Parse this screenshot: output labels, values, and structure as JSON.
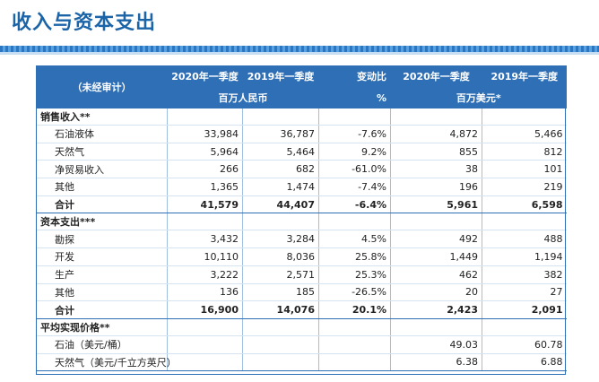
{
  "title": "收入与资本支出",
  "header": {
    "label": "（未经审计）",
    "col1": "2020年一季度",
    "col2": "2019年一季度",
    "col3": "变动比",
    "col4": "2020年一季度",
    "col5": "2019年一季度",
    "unit_rmb": "百万人民币",
    "unit_pct": "%",
    "unit_usd": "百万美元*"
  },
  "sections": [
    {
      "name": "销售收入**",
      "rows": [
        {
          "label": "石油液体",
          "v": [
            "33,984",
            "36,787",
            "-7.6%",
            "4,872",
            "5,466"
          ]
        },
        {
          "label": "天然气",
          "v": [
            "5,964",
            "5,464",
            "9.2%",
            "855",
            "812"
          ]
        },
        {
          "label": "净贸易收入",
          "v": [
            "266",
            "682",
            "-61.0%",
            "38",
            "101"
          ]
        },
        {
          "label": "其他",
          "v": [
            "1,365",
            "1,474",
            "-7.4%",
            "196",
            "219"
          ]
        }
      ],
      "total": {
        "label": "合计",
        "v": [
          "41,579",
          "44,407",
          "-6.4%",
          "5,961",
          "6,598"
        ]
      }
    },
    {
      "name": "资本支出***",
      "rows": [
        {
          "label": "勘探",
          "v": [
            "3,432",
            "3,284",
            "4.5%",
            "492",
            "488"
          ]
        },
        {
          "label": "开发",
          "v": [
            "10,110",
            "8,036",
            "25.8%",
            "1,449",
            "1,194"
          ]
        },
        {
          "label": "生产",
          "v": [
            "3,222",
            "2,571",
            "25.3%",
            "462",
            "382"
          ]
        },
        {
          "label": "其他",
          "v": [
            "136",
            "185",
            "-26.5%",
            "20",
            "27"
          ]
        }
      ],
      "total": {
        "label": "合计",
        "v": [
          "16,900",
          "14,076",
          "20.1%",
          "2,423",
          "2,091"
        ]
      }
    },
    {
      "name": "平均实现价格**",
      "rows": [
        {
          "label": "石油（美元/桶）",
          "v": [
            "",
            "",
            "",
            "49.03",
            "60.78"
          ]
        },
        {
          "label": "天然气（美元/千立方英尺）",
          "v": [
            "",
            "",
            "",
            "6.38",
            "6.88"
          ]
        }
      ]
    }
  ]
}
